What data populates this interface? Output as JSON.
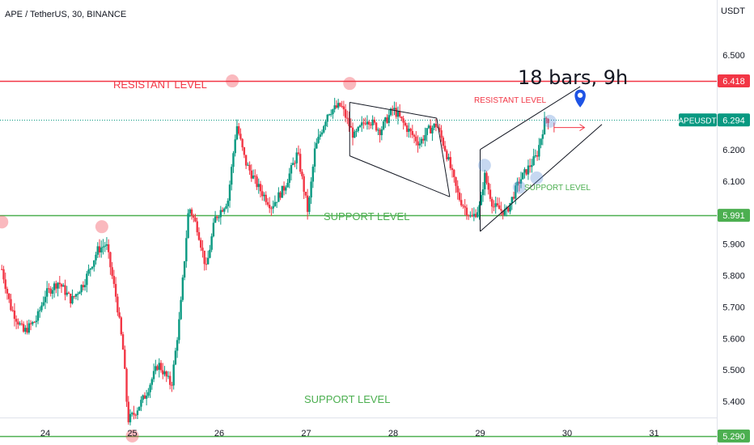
{
  "header": {
    "symbol_title": "APE / TetherUS, 30, BINANCE"
  },
  "price_axis": {
    "currency": "USDT",
    "ticks": [
      {
        "label": "6.500",
        "value": 6.5
      },
      {
        "label": "6.300",
        "value": 6.3
      },
      {
        "label": "6.200",
        "value": 6.2
      },
      {
        "label": "6.100",
        "value": 6.1
      },
      {
        "label": "5.900",
        "value": 5.9
      },
      {
        "label": "5.800",
        "value": 5.8
      },
      {
        "label": "5.700",
        "value": 5.7
      },
      {
        "label": "5.600",
        "value": 5.6
      },
      {
        "label": "5.500",
        "value": 5.5
      },
      {
        "label": "5.400",
        "value": 5.4
      }
    ],
    "level_tags": [
      {
        "label": "6.418",
        "value": 6.418,
        "color": "#f23645"
      },
      {
        "label": "5.991",
        "value": 5.991,
        "color": "#4caf50"
      },
      {
        "label": "5.290",
        "value": 5.29,
        "color": "#4caf50"
      }
    ],
    "symbol_tag": {
      "name": "APEUSDT",
      "price": "6.294",
      "value": 6.294,
      "color": "#089981"
    }
  },
  "time_axis": {
    "ticks": [
      {
        "label": "24",
        "pos": 24
      },
      {
        "label": "25",
        "pos": 25
      },
      {
        "label": "26",
        "pos": 26
      },
      {
        "label": "27",
        "pos": 27
      },
      {
        "label": "28",
        "pos": 28
      },
      {
        "label": "29",
        "pos": 29
      },
      {
        "label": "30",
        "pos": 30
      },
      {
        "label": "31",
        "pos": 31
      }
    ]
  },
  "annotations": {
    "resistant_main": "RESISTANT LEVEL",
    "resistant_small": "RESISTANT LEVEL",
    "support_main": "SUPPORT LEVEL",
    "support_small": "SUPPORT LEVEL",
    "support_low": "SUPPORT LEVEL",
    "bars_note": "18 bars, 9h"
  },
  "chart_data": {
    "type": "candlestick",
    "title": "APE / TetherUS, 30, BINANCE",
    "xlabel": "",
    "ylabel": "USDT",
    "ylim": [
      5.28,
      6.6
    ],
    "xlim": [
      23.5,
      31.75
    ],
    "up_color": "#089981",
    "down_color": "#f23645",
    "levels": [
      {
        "name": "resistant",
        "value": 6.418,
        "color": "#f23645"
      },
      {
        "name": "support",
        "value": 5.991,
        "color": "#4caf50"
      },
      {
        "name": "support",
        "value": 5.29,
        "color": "#4caf50"
      }
    ],
    "last_price": 6.294,
    "price_path": [
      {
        "t": 23.5,
        "p": 5.82
      },
      {
        "t": 23.6,
        "p": 5.7
      },
      {
        "t": 23.75,
        "p": 5.62
      },
      {
        "t": 23.9,
        "p": 5.66
      },
      {
        "t": 24.0,
        "p": 5.74
      },
      {
        "t": 24.15,
        "p": 5.78
      },
      {
        "t": 24.3,
        "p": 5.72
      },
      {
        "t": 24.45,
        "p": 5.78
      },
      {
        "t": 24.6,
        "p": 5.88
      },
      {
        "t": 24.7,
        "p": 5.9
      },
      {
        "t": 24.82,
        "p": 5.72
      },
      {
        "t": 24.9,
        "p": 5.55
      },
      {
        "t": 24.95,
        "p": 5.34
      },
      {
        "t": 25.02,
        "p": 5.36
      },
      {
        "t": 25.15,
        "p": 5.42
      },
      {
        "t": 25.3,
        "p": 5.52
      },
      {
        "t": 25.45,
        "p": 5.45
      },
      {
        "t": 25.55,
        "p": 5.68
      },
      {
        "t": 25.65,
        "p": 6.02
      },
      {
        "t": 25.75,
        "p": 5.95
      },
      {
        "t": 25.85,
        "p": 5.82
      },
      {
        "t": 25.95,
        "p": 5.98
      },
      {
        "t": 26.1,
        "p": 6.04
      },
      {
        "t": 26.2,
        "p": 6.28
      },
      {
        "t": 26.3,
        "p": 6.16
      },
      {
        "t": 26.45,
        "p": 6.08
      },
      {
        "t": 26.6,
        "p": 6.02
      },
      {
        "t": 26.75,
        "p": 6.08
      },
      {
        "t": 26.9,
        "p": 6.19
      },
      {
        "t": 27.02,
        "p": 6.0
      },
      {
        "t": 27.1,
        "p": 6.2
      },
      {
        "t": 27.25,
        "p": 6.32
      },
      {
        "t": 27.4,
        "p": 6.34
      },
      {
        "t": 27.55,
        "p": 6.24
      },
      {
        "t": 27.7,
        "p": 6.3
      },
      {
        "t": 27.85,
        "p": 6.26
      },
      {
        "t": 28.0,
        "p": 6.33
      },
      {
        "t": 28.15,
        "p": 6.27
      },
      {
        "t": 28.3,
        "p": 6.22
      },
      {
        "t": 28.4,
        "p": 6.26
      },
      {
        "t": 28.5,
        "p": 6.28
      },
      {
        "t": 28.6,
        "p": 6.2
      },
      {
        "t": 28.75,
        "p": 6.05
      },
      {
        "t": 28.9,
        "p": 5.98
      },
      {
        "t": 29.0,
        "p": 6.02
      },
      {
        "t": 29.05,
        "p": 6.12
      },
      {
        "t": 29.15,
        "p": 6.02
      },
      {
        "t": 29.3,
        "p": 6.0
      },
      {
        "t": 29.45,
        "p": 6.1
      },
      {
        "t": 29.55,
        "p": 6.14
      },
      {
        "t": 29.65,
        "p": 6.18
      },
      {
        "t": 29.75,
        "p": 6.3
      },
      {
        "t": 29.8,
        "p": 6.294
      }
    ],
    "patterns": {
      "falling_wedge": {
        "upper": [
          {
            "t": 27.5,
            "p": 6.35
          },
          {
            "t": 28.5,
            "p": 6.3
          }
        ],
        "lower": [
          {
            "t": 27.5,
            "p": 6.18
          },
          {
            "t": 28.65,
            "p": 6.05
          }
        ]
      },
      "rising_channel": {
        "upper": [
          {
            "t": 29.0,
            "p": 6.2
          },
          {
            "t": 30.15,
            "p": 6.4
          }
        ],
        "lower": [
          {
            "t": 29.0,
            "p": 5.94
          },
          {
            "t": 30.4,
            "p": 6.28
          }
        ]
      },
      "projection_arrow": [
        {
          "t": 29.85,
          "p": 6.27
        },
        {
          "t": 30.2,
          "p": 6.27
        }
      ],
      "target_marker": {
        "t": 30.15,
        "p": 6.37
      }
    },
    "highlight_points": [
      {
        "t": 26.15,
        "p": 6.418,
        "color": "#f23645"
      },
      {
        "t": 27.5,
        "p": 6.41,
        "color": "#f23645"
      },
      {
        "t": 23.5,
        "p": 5.97,
        "color": "#f23645"
      },
      {
        "t": 24.65,
        "p": 5.955,
        "color": "#f23645"
      },
      {
        "t": 25.0,
        "p": 5.29,
        "color": "#f23645"
      },
      {
        "t": 29.05,
        "p": 6.15,
        "color": "#5b8ed6"
      },
      {
        "t": 29.8,
        "p": 6.29,
        "color": "#5b8ed6"
      },
      {
        "t": 29.65,
        "p": 6.11,
        "color": "#5b8ed6"
      },
      {
        "t": 29.45,
        "p": 6.08,
        "color": "#5b8ed6"
      }
    ]
  }
}
